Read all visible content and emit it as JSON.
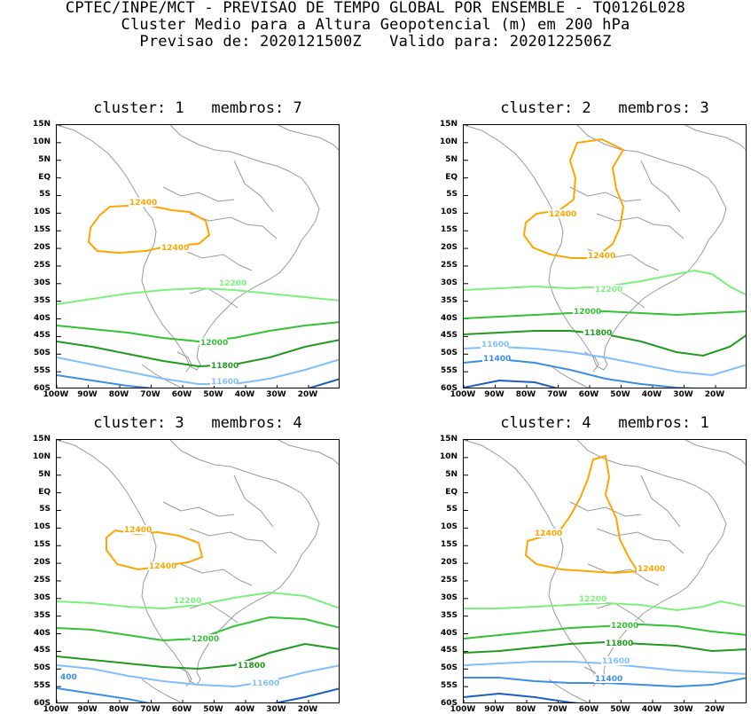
{
  "header": {
    "line1": "CPTEC/INPE/MCT - PREVISAO DE TEMPO GLOBAL POR ENSEMBLE - TQ0126L028",
    "line2": "Cluster Medio para a Altura Geopotencial (m) em 200 hPa",
    "line3": "Previsao de: 2020121500Z   Valido para: 2020122506Z"
  },
  "axes": {
    "y_ticks": [
      "15N",
      "10N",
      "5N",
      "EQ",
      "5S",
      "10S",
      "15S",
      "20S",
      "25S",
      "30S",
      "35S",
      "40S",
      "45S",
      "50S",
      "55S",
      "60S"
    ],
    "x_ticks": [
      "100W",
      "90W",
      "80W",
      "70W",
      "60W",
      "50W",
      "40W",
      "30W",
      "20W"
    ]
  },
  "colors": {
    "c12400": "#ffa500",
    "c12200": "#7cf07c",
    "c12000": "#33c233",
    "c11800": "#1f9a1f",
    "c11600": "#7fbfff",
    "c11400": "#3a8ee6",
    "c11200": "#1a5fc0",
    "coast": "#9a9a9a"
  },
  "panels": [
    {
      "title": "cluster: 1   membros: 7",
      "labels": {
        "a": "12400",
        "b": "12400",
        "c": "12200",
        "d": "12000",
        "e": "11800",
        "f": "11600"
      }
    },
    {
      "title": "cluster: 2   membros: 3",
      "labels": {
        "a": "12400",
        "b": "12400",
        "c": "12200",
        "d": "12000",
        "e": "11800",
        "f": "11600",
        "g": "11400"
      }
    },
    {
      "title": "cluster: 3   membros: 4",
      "labels": {
        "a": "12400",
        "b": "12400",
        "c": "12200",
        "d": "12000",
        "e": "11800",
        "f": "11600",
        "g": "400"
      }
    },
    {
      "title": "cluster: 4   membros: 1",
      "labels": {
        "a": "12400",
        "b": "12400",
        "c": "12200",
        "d": "12000",
        "e": "11800",
        "f": "11600",
        "g": "11400"
      }
    }
  ]
}
